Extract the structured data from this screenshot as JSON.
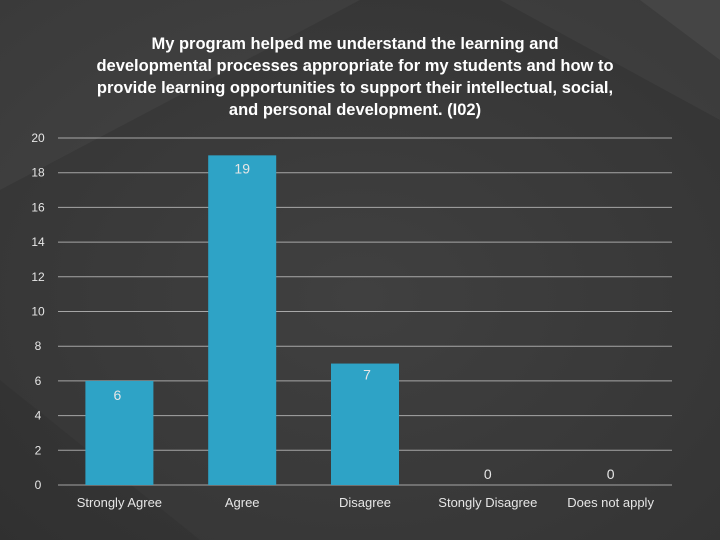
{
  "chart_data": {
    "type": "bar",
    "title": "My program helped me understand the learning and developmental processes appropriate for my students and how to provide learning opportunities to support their intellectual, social, and personal development. (I02)",
    "categories": [
      "Strongly Agree",
      "Agree",
      "Disagree",
      "Stongly Disagree",
      "Does not apply"
    ],
    "values": [
      6,
      19,
      7,
      0,
      0
    ],
    "data_labels": [
      "6",
      "19",
      "7",
      "0",
      "0"
    ],
    "xlabel": "",
    "ylabel": "",
    "ylim": [
      0,
      20
    ],
    "yticks": [
      0,
      2,
      4,
      6,
      8,
      10,
      12,
      14,
      16,
      18,
      20
    ],
    "grid": true,
    "legend": "none",
    "colors": {
      "bar": "#2ea3c6",
      "background": "#3b3b3b",
      "text": "#ffffff",
      "axis_text": "#e6e6e6",
      "grid": "#ffffff"
    }
  }
}
